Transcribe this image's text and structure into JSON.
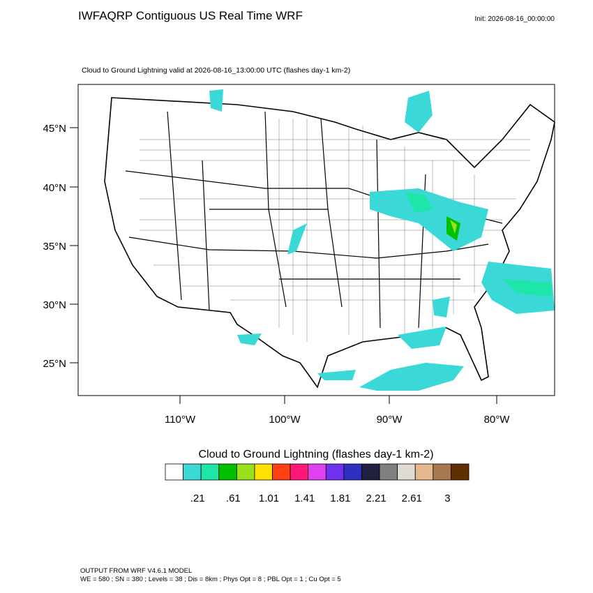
{
  "header": {
    "title": "IWFAQRP Contiguous US Real Time WRF",
    "init": "Init: 2026-08-16_00:00:00"
  },
  "map": {
    "subtitle": "Cloud to Ground Lightning valid at 2026-08-16_13:00:00 UTC   (flashes day-1 km-2)",
    "lat_labels": [
      "45°N",
      "40°N",
      "35°N",
      "30°N",
      "25°N"
    ],
    "lon_labels": [
      "110°W",
      "100°W",
      "90°W",
      "80°W"
    ]
  },
  "colorbar": {
    "title": "Cloud to Ground Lightning  (flashes day-1 km-2)",
    "colors": [
      "#ffffff",
      "#3bd8d8",
      "#1ee6a8",
      "#00c000",
      "#99e01a",
      "#ffe000",
      "#ff4010",
      "#ff1878",
      "#e040f0",
      "#7030f0",
      "#3030c0",
      "#202040",
      "#808080",
      "#e0dcd4",
      "#e6b890",
      "#a87850",
      "#603000"
    ],
    "labels": [
      ".21",
      ".61",
      "1.01",
      "1.41",
      "1.81",
      "2.21",
      "2.61",
      "3"
    ]
  },
  "footer": {
    "lines": [
      "OUTPUT FROM WRF V4.6.1 MODEL",
      "WE = 580 ; SN = 380 ; Levels = 38 ; Dis = 8km ; Phys Opt = 8 ; PBL Opt = 1 ; Cu Opt = 5"
    ]
  }
}
